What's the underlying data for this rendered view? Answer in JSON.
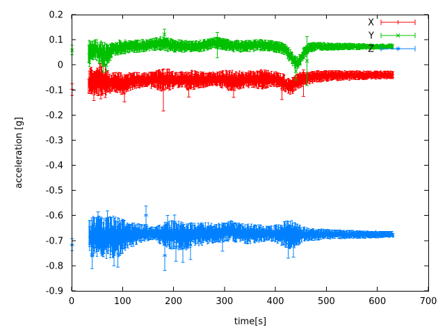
{
  "chart_data": {
    "type": "scatter",
    "subtype": "errorbars",
    "title": "",
    "xlabel": "time[s]",
    "ylabel": "acceleration [g]",
    "xlim": [
      0,
      700
    ],
    "ylim": [
      -0.9,
      0.2
    ],
    "grid": false,
    "background_color": "#ffffff",
    "border_color": "#000000",
    "text_color": "#000000",
    "legend": {
      "position": "top-right-inside",
      "frame": false
    },
    "xticks": [
      {
        "v": 0,
        "label": "0"
      },
      {
        "v": 100,
        "label": "100"
      },
      {
        "v": 200,
        "label": "200"
      },
      {
        "v": 300,
        "label": "300"
      },
      {
        "v": 400,
        "label": "400"
      },
      {
        "v": 500,
        "label": "500"
      },
      {
        "v": 600,
        "label": "600"
      },
      {
        "v": 700,
        "label": "700"
      }
    ],
    "yticks": [
      {
        "v": 0.2,
        "label": "0.2"
      },
      {
        "v": 0.1,
        "label": "0.1"
      },
      {
        "v": 0,
        "label": "0"
      },
      {
        "v": -0.1,
        "label": "-0.1"
      },
      {
        "v": -0.2,
        "label": "-0.2"
      },
      {
        "v": -0.3,
        "label": "-0.3"
      },
      {
        "v": -0.4,
        "label": "-0.4"
      },
      {
        "v": -0.5,
        "label": "-0.5"
      },
      {
        "v": -0.6,
        "label": "-0.6"
      },
      {
        "v": -0.7,
        "label": "-0.7"
      },
      {
        "v": -0.8,
        "label": "-0.8"
      },
      {
        "v": -0.9,
        "label": "-0.9"
      }
    ],
    "noise_render": {
      "step_s": 0.8
    },
    "series": [
      {
        "name": "X",
        "color": "#ff0000",
        "marker": "plus",
        "t_start": 33,
        "t_end": 632,
        "mean_level": -0.05,
        "start_point": {
          "t": 1,
          "v": -0.097,
          "lo": -0.122,
          "hi": -0.075
        },
        "band": [
          [
            33,
            -0.123,
            -0.025
          ],
          [
            40,
            -0.118,
            -0.005
          ],
          [
            47,
            -0.128,
            -0.02
          ],
          [
            55,
            -0.12,
            0.005
          ],
          [
            63,
            -0.125,
            -0.005
          ],
          [
            70,
            -0.118,
            -0.02
          ],
          [
            78,
            -0.112,
            -0.03
          ],
          [
            90,
            -0.112,
            -0.028
          ],
          [
            102,
            -0.12,
            -0.035
          ],
          [
            112,
            -0.105,
            -0.03
          ],
          [
            125,
            -0.097,
            -0.028
          ],
          [
            140,
            -0.09,
            -0.032
          ],
          [
            152,
            -0.092,
            -0.03
          ],
          [
            165,
            -0.098,
            -0.02
          ],
          [
            178,
            -0.108,
            -0.012
          ],
          [
            188,
            -0.105,
            -0.01
          ],
          [
            200,
            -0.098,
            -0.022
          ],
          [
            212,
            -0.09,
            -0.028
          ],
          [
            222,
            -0.1,
            -0.018
          ],
          [
            235,
            -0.102,
            -0.02
          ],
          [
            248,
            -0.095,
            -0.025
          ],
          [
            262,
            -0.09,
            -0.028
          ],
          [
            275,
            -0.085,
            -0.028
          ],
          [
            288,
            -0.088,
            -0.026
          ],
          [
            300,
            -0.095,
            -0.022
          ],
          [
            312,
            -0.108,
            -0.02
          ],
          [
            325,
            -0.102,
            -0.024
          ],
          [
            338,
            -0.092,
            -0.026
          ],
          [
            352,
            -0.09,
            -0.024
          ],
          [
            365,
            -0.095,
            -0.02
          ],
          [
            378,
            -0.098,
            -0.018
          ],
          [
            390,
            -0.088,
            -0.024
          ],
          [
            402,
            -0.09,
            -0.028
          ],
          [
            412,
            -0.1,
            -0.032
          ],
          [
            422,
            -0.115,
            -0.045
          ],
          [
            430,
            -0.122,
            -0.055
          ],
          [
            438,
            -0.108,
            -0.04
          ],
          [
            448,
            -0.092,
            -0.03
          ],
          [
            460,
            -0.08,
            -0.026
          ],
          [
            475,
            -0.072,
            -0.022
          ],
          [
            500,
            -0.066,
            -0.022
          ],
          [
            540,
            -0.062,
            -0.023
          ],
          [
            590,
            -0.058,
            -0.024
          ],
          [
            632,
            -0.056,
            -0.025
          ]
        ],
        "outliers": [
          [
            44,
            -0.142,
            -0.05
          ],
          [
            57,
            -0.135,
            0.008
          ],
          [
            66,
            -0.13,
            0.0
          ],
          [
            104,
            -0.148,
            -0.05
          ],
          [
            180,
            -0.184,
            -0.018
          ],
          [
            230,
            -0.128,
            -0.03
          ],
          [
            318,
            -0.13,
            -0.04
          ],
          [
            413,
            -0.138,
            -0.05
          ],
          [
            455,
            -0.125,
            -0.02
          ]
        ]
      },
      {
        "name": "Y",
        "color": "#00c000",
        "marker": "cross",
        "t_start": 33,
        "t_end": 632,
        "mean_level": 0.07,
        "start_point": {
          "t": 1,
          "v": 0.058,
          "lo": 0.04,
          "hi": 0.078
        },
        "band": [
          [
            33,
            -0.015,
            0.1
          ],
          [
            40,
            0.01,
            0.105
          ],
          [
            48,
            0.02,
            0.1
          ],
          [
            56,
            -0.005,
            0.1
          ],
          [
            64,
            -0.022,
            0.092
          ],
          [
            72,
            0.0,
            0.09
          ],
          [
            80,
            0.03,
            0.095
          ],
          [
            95,
            0.04,
            0.1
          ],
          [
            115,
            0.048,
            0.098
          ],
          [
            140,
            0.05,
            0.102
          ],
          [
            160,
            0.055,
            0.105
          ],
          [
            172,
            0.058,
            0.112
          ],
          [
            182,
            0.055,
            0.115
          ],
          [
            195,
            0.05,
            0.105
          ],
          [
            215,
            0.048,
            0.1
          ],
          [
            235,
            0.05,
            0.096
          ],
          [
            255,
            0.052,
            0.1
          ],
          [
            270,
            0.058,
            0.105
          ],
          [
            282,
            0.065,
            0.112
          ],
          [
            295,
            0.06,
            0.108
          ],
          [
            310,
            0.052,
            0.1
          ],
          [
            330,
            0.05,
            0.098
          ],
          [
            350,
            0.052,
            0.1
          ],
          [
            370,
            0.055,
            0.102
          ],
          [
            390,
            0.05,
            0.098
          ],
          [
            405,
            0.048,
            0.094
          ],
          [
            418,
            0.04,
            0.088
          ],
          [
            428,
            0.01,
            0.065
          ],
          [
            436,
            -0.012,
            0.04
          ],
          [
            443,
            -0.018,
            0.032
          ],
          [
            450,
            0.0,
            0.05
          ],
          [
            458,
            0.028,
            0.075
          ],
          [
            466,
            0.048,
            0.088
          ],
          [
            480,
            0.055,
            0.09
          ],
          [
            510,
            0.058,
            0.088
          ],
          [
            550,
            0.06,
            0.086
          ],
          [
            590,
            0.061,
            0.084
          ],
          [
            632,
            0.062,
            0.083
          ]
        ],
        "outliers": [
          [
            62,
            -0.03,
            0.03
          ],
          [
            68,
            -0.025,
            0.025
          ],
          [
            182,
            0.1,
            0.142
          ],
          [
            286,
            0.028,
            0.13
          ],
          [
            440,
            -0.06,
            0.01
          ],
          [
            462,
            -0.082,
            0.113
          ]
        ]
      },
      {
        "name": "Z",
        "color": "#0080ff",
        "marker": "asterisk",
        "t_start": 34,
        "t_end": 632,
        "mean_level": -0.68,
        "start_point": {
          "t": 1,
          "v": -0.717,
          "lo": -0.74,
          "hi": -0.692
        },
        "band": [
          [
            34,
            -0.75,
            -0.62
          ],
          [
            40,
            -0.772,
            -0.603
          ],
          [
            48,
            -0.775,
            -0.598
          ],
          [
            58,
            -0.768,
            -0.6
          ],
          [
            68,
            -0.775,
            -0.602
          ],
          [
            78,
            -0.77,
            -0.6
          ],
          [
            88,
            -0.772,
            -0.605
          ],
          [
            98,
            -0.755,
            -0.612
          ],
          [
            108,
            -0.738,
            -0.62
          ],
          [
            120,
            -0.725,
            -0.628
          ],
          [
            132,
            -0.712,
            -0.632
          ],
          [
            145,
            -0.702,
            -0.638
          ],
          [
            158,
            -0.698,
            -0.645
          ],
          [
            170,
            -0.705,
            -0.638
          ],
          [
            180,
            -0.728,
            -0.622
          ],
          [
            192,
            -0.738,
            -0.618
          ],
          [
            204,
            -0.732,
            -0.622
          ],
          [
            216,
            -0.74,
            -0.624
          ],
          [
            228,
            -0.735,
            -0.625
          ],
          [
            240,
            -0.722,
            -0.628
          ],
          [
            252,
            -0.72,
            -0.625
          ],
          [
            265,
            -0.715,
            -0.628
          ],
          [
            278,
            -0.712,
            -0.632
          ],
          [
            290,
            -0.708,
            -0.63
          ],
          [
            302,
            -0.705,
            -0.628
          ],
          [
            312,
            -0.7,
            -0.618
          ],
          [
            322,
            -0.708,
            -0.628
          ],
          [
            335,
            -0.712,
            -0.632
          ],
          [
            348,
            -0.715,
            -0.633
          ],
          [
            360,
            -0.71,
            -0.632
          ],
          [
            372,
            -0.706,
            -0.638
          ],
          [
            384,
            -0.702,
            -0.642
          ],
          [
            396,
            -0.708,
            -0.64
          ],
          [
            408,
            -0.716,
            -0.632
          ],
          [
            420,
            -0.728,
            -0.622
          ],
          [
            430,
            -0.74,
            -0.617
          ],
          [
            440,
            -0.725,
            -0.63
          ],
          [
            452,
            -0.71,
            -0.642
          ],
          [
            465,
            -0.702,
            -0.648
          ],
          [
            480,
            -0.698,
            -0.652
          ],
          [
            500,
            -0.695,
            -0.655
          ],
          [
            525,
            -0.693,
            -0.657
          ],
          [
            555,
            -0.692,
            -0.659
          ],
          [
            590,
            -0.69,
            -0.661
          ],
          [
            632,
            -0.689,
            -0.663
          ]
        ],
        "outliers": [
          [
            40,
            -0.812,
            -0.7
          ],
          [
            52,
            -0.66,
            -0.585
          ],
          [
            70,
            -0.655,
            -0.582
          ],
          [
            83,
            -0.8,
            -0.69
          ],
          [
            91,
            -0.806,
            -0.698
          ],
          [
            146,
            -0.636,
            -0.562
          ],
          [
            183,
            -0.818,
            -0.7
          ],
          [
            188,
            -0.66,
            -0.6
          ],
          [
            202,
            -0.655,
            -0.598
          ],
          [
            205,
            -0.782,
            -0.672
          ],
          [
            218,
            -0.786,
            -0.675
          ],
          [
            233,
            -0.775,
            -0.66
          ],
          [
            296,
            -0.742,
            -0.63
          ],
          [
            425,
            -0.77,
            -0.655
          ],
          [
            435,
            -0.765,
            -0.652
          ]
        ]
      }
    ]
  }
}
